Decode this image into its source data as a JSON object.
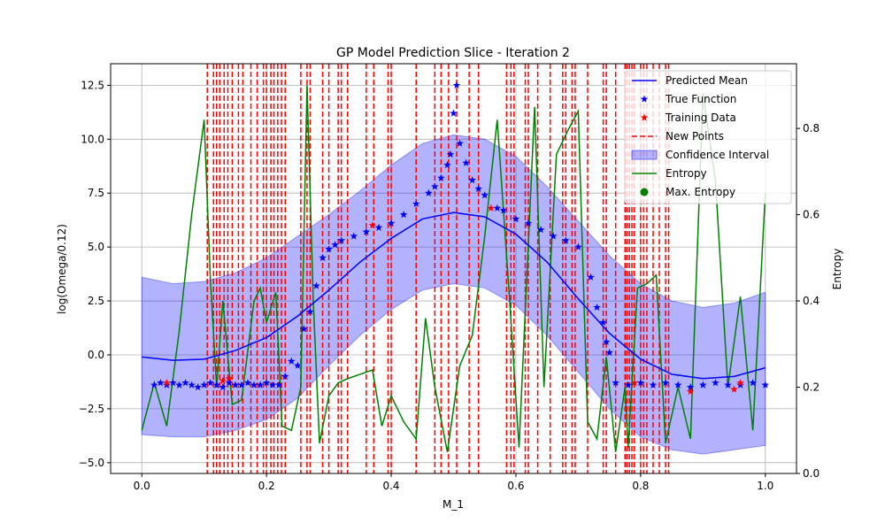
{
  "chart_data": {
    "type": "line",
    "title": "GP Model Prediction Slice - Iteration 2",
    "xlabel": "M_1",
    "ylabel": "log(Omega/0.12)",
    "y2label": "Entropy",
    "xlim": [
      -0.05,
      1.05
    ],
    "ylim": [
      -5.5,
      13.5
    ],
    "y2lim": [
      0,
      0.95
    ],
    "xticks": [
      0.0,
      0.2,
      0.4,
      0.6,
      0.8,
      1.0
    ],
    "xtick_labels": [
      "0.0",
      "0.2",
      "0.4",
      "0.6",
      "0.8",
      "1.0"
    ],
    "yticks": [
      -5.0,
      -2.5,
      0.0,
      2.5,
      5.0,
      7.5,
      10.0,
      12.5
    ],
    "ytick_labels": [
      "−5.0",
      "−2.5",
      "0.0",
      "2.5",
      "5.0",
      "7.5",
      "10.0",
      "12.5"
    ],
    "y2ticks": [
      0.0,
      0.2,
      0.4,
      0.6,
      0.8
    ],
    "y2tick_labels": [
      "0.0",
      "0.2",
      "0.4",
      "0.6",
      "0.8"
    ],
    "grid": true,
    "legend_position": "top-right",
    "legend": [
      {
        "label": "Predicted Mean",
        "marker": "line",
        "color": "#0000ff"
      },
      {
        "label": "True Function",
        "marker": "star",
        "color": "#0000ff"
      },
      {
        "label": "Training Data",
        "marker": "star",
        "color": "#ff0000"
      },
      {
        "label": "New Points",
        "marker": "dashed",
        "color": "#ff0000"
      },
      {
        "label": "Confidence Interval",
        "marker": "patch",
        "color": "#0000ff"
      },
      {
        "label": "Entropy",
        "marker": "line",
        "color": "#008000"
      },
      {
        "label": "Max. Entropy",
        "marker": "dot",
        "color": "#008000"
      }
    ],
    "colors": {
      "mean": "#0000ff",
      "true": "#0000ff",
      "training": "#ff0000",
      "new_points": "#ff0000",
      "band": "#0000ff",
      "entropy": "#008000"
    },
    "mean": {
      "x": [
        0,
        0.05,
        0.1,
        0.15,
        0.2,
        0.25,
        0.3,
        0.35,
        0.4,
        0.45,
        0.5,
        0.55,
        0.6,
        0.65,
        0.7,
        0.75,
        0.8,
        0.85,
        0.9,
        0.95,
        1.0
      ],
      "y": [
        -0.1,
        -0.25,
        -0.2,
        0.2,
        0.8,
        1.8,
        3.0,
        4.3,
        5.4,
        6.3,
        6.6,
        6.4,
        5.6,
        4.3,
        2.6,
        1.0,
        -0.2,
        -0.9,
        -1.1,
        -1.0,
        -0.6
      ]
    },
    "band_upper": [
      3.6,
      3.3,
      3.4,
      3.8,
      4.5,
      5.5,
      6.5,
      7.6,
      8.8,
      9.8,
      10.2,
      10.0,
      9.2,
      7.8,
      6.2,
      4.6,
      3.3,
      2.5,
      2.2,
      2.4,
      2.9
    ],
    "band_lower": [
      -3.7,
      -3.8,
      -3.8,
      -3.5,
      -3.0,
      -2.0,
      -0.5,
      0.9,
      2.1,
      3.0,
      3.3,
      3.1,
      2.3,
      0.9,
      -0.8,
      -2.5,
      -3.8,
      -4.4,
      -4.6,
      -4.4,
      -4.2
    ],
    "true_function": [
      [
        0.02,
        -1.4
      ],
      [
        0.03,
        -1.3
      ],
      [
        0.04,
        -1.4
      ],
      [
        0.05,
        -1.3
      ],
      [
        0.06,
        -1.4
      ],
      [
        0.07,
        -1.3
      ],
      [
        0.08,
        -1.4
      ],
      [
        0.09,
        -1.5
      ],
      [
        0.1,
        -1.4
      ],
      [
        0.11,
        -1.3
      ],
      [
        0.12,
        -1.4
      ],
      [
        0.13,
        -1.5
      ],
      [
        0.14,
        -1.3
      ],
      [
        0.15,
        -1.4
      ],
      [
        0.16,
        -1.4
      ],
      [
        0.17,
        -1.3
      ],
      [
        0.18,
        -1.4
      ],
      [
        0.19,
        -1.4
      ],
      [
        0.2,
        -1.3
      ],
      [
        0.21,
        -1.4
      ],
      [
        0.22,
        -1.4
      ],
      [
        0.23,
        -1.0
      ],
      [
        0.24,
        -0.3
      ],
      [
        0.25,
        -0.5
      ],
      [
        0.26,
        1.2
      ],
      [
        0.27,
        2.0
      ],
      [
        0.28,
        3.2
      ],
      [
        0.29,
        4.5
      ],
      [
        0.3,
        4.9
      ],
      [
        0.31,
        5.1
      ],
      [
        0.32,
        5.3
      ],
      [
        0.34,
        5.5
      ],
      [
        0.36,
        5.7
      ],
      [
        0.38,
        5.9
      ],
      [
        0.4,
        6.1
      ],
      [
        0.42,
        6.5
      ],
      [
        0.44,
        7.0
      ],
      [
        0.46,
        7.5
      ],
      [
        0.47,
        7.8
      ],
      [
        0.48,
        8.2
      ],
      [
        0.49,
        8.8
      ],
      [
        0.495,
        9.3
      ],
      [
        0.5,
        11.2
      ],
      [
        0.505,
        12.5
      ],
      [
        0.51,
        9.8
      ],
      [
        0.52,
        8.9
      ],
      [
        0.53,
        8.1
      ],
      [
        0.54,
        7.7
      ],
      [
        0.55,
        7.4
      ],
      [
        0.57,
        6.8
      ],
      [
        0.58,
        6.7
      ],
      [
        0.6,
        6.3
      ],
      [
        0.62,
        6.1
      ],
      [
        0.64,
        5.8
      ],
      [
        0.66,
        5.5
      ],
      [
        0.68,
        5.3
      ],
      [
        0.7,
        5.0
      ],
      [
        0.72,
        3.6
      ],
      [
        0.73,
        2.2
      ],
      [
        0.74,
        1.5
      ],
      [
        0.745,
        0.6
      ],
      [
        0.75,
        0.1
      ],
      [
        0.76,
        -1.3
      ],
      [
        0.78,
        -1.4
      ],
      [
        0.8,
        -1.3
      ],
      [
        0.82,
        -1.4
      ],
      [
        0.84,
        -1.3
      ],
      [
        0.86,
        -1.4
      ],
      [
        0.88,
        -1.5
      ],
      [
        0.9,
        -1.4
      ],
      [
        0.92,
        -1.3
      ],
      [
        0.94,
        -1.4
      ],
      [
        0.96,
        -1.4
      ],
      [
        0.98,
        -1.3
      ],
      [
        1.0,
        -1.4
      ]
    ],
    "training_data": [
      [
        0.04,
        -1.3
      ],
      [
        0.13,
        -1.2
      ],
      [
        0.14,
        -1.1
      ],
      [
        0.37,
        6.0
      ],
      [
        0.56,
        6.8
      ],
      [
        0.79,
        -1.3
      ],
      [
        0.88,
        -1.7
      ],
      [
        0.95,
        -1.6
      ],
      [
        0.96,
        -1.3
      ]
    ],
    "new_points": [
      0.105,
      0.115,
      0.12,
      0.125,
      0.132,
      0.138,
      0.145,
      0.155,
      0.162,
      0.175,
      0.185,
      0.195,
      0.2,
      0.207,
      0.212,
      0.218,
      0.224,
      0.23,
      0.255,
      0.265,
      0.27,
      0.29,
      0.3,
      0.315,
      0.32,
      0.33,
      0.36,
      0.372,
      0.395,
      0.4,
      0.44,
      0.47,
      0.48,
      0.492,
      0.505,
      0.525,
      0.54,
      0.585,
      0.592,
      0.597,
      0.615,
      0.62,
      0.635,
      0.655,
      0.675,
      0.68,
      0.69,
      0.695,
      0.715,
      0.74,
      0.745,
      0.76,
      0.775,
      0.778,
      0.782,
      0.786,
      0.79,
      0.8,
      0.805,
      0.81,
      0.82,
      0.83,
      0.84,
      0.845
    ],
    "entropy": {
      "x": [
        0.0,
        0.02,
        0.04,
        0.06,
        0.08,
        0.1,
        0.11,
        0.12,
        0.13,
        0.145,
        0.16,
        0.18,
        0.19,
        0.2,
        0.215,
        0.225,
        0.24,
        0.255,
        0.265,
        0.275,
        0.285,
        0.3,
        0.315,
        0.33,
        0.35,
        0.37,
        0.385,
        0.4,
        0.42,
        0.44,
        0.455,
        0.47,
        0.49,
        0.51,
        0.53,
        0.55,
        0.57,
        0.59,
        0.605,
        0.63,
        0.645,
        0.665,
        0.685,
        0.7,
        0.715,
        0.73,
        0.745,
        0.76,
        0.775,
        0.78,
        0.795,
        0.81,
        0.825,
        0.84,
        0.86,
        0.88,
        0.9,
        0.92,
        0.94,
        0.96,
        0.98,
        1.0
      ],
      "y": [
        0.1,
        0.21,
        0.11,
        0.33,
        0.6,
        0.82,
        0.45,
        0.2,
        0.4,
        0.16,
        0.17,
        0.4,
        0.43,
        0.35,
        0.42,
        0.11,
        0.1,
        0.2,
        0.9,
        0.4,
        0.07,
        0.18,
        0.21,
        0.22,
        0.23,
        0.24,
        0.11,
        0.18,
        0.12,
        0.08,
        0.36,
        0.2,
        0.05,
        0.25,
        0.32,
        0.55,
        0.82,
        0.4,
        0.06,
        0.85,
        0.2,
        0.74,
        0.8,
        0.84,
        0.12,
        0.08,
        0.27,
        0.05,
        0.2,
        0.06,
        0.43,
        0.44,
        0.46,
        0.07,
        0.2,
        0.08,
        0.88,
        0.68,
        0.2,
        0.41,
        0.1,
        0.65
      ]
    },
    "max_entropy": [
      0.265,
      0.9
    ]
  }
}
